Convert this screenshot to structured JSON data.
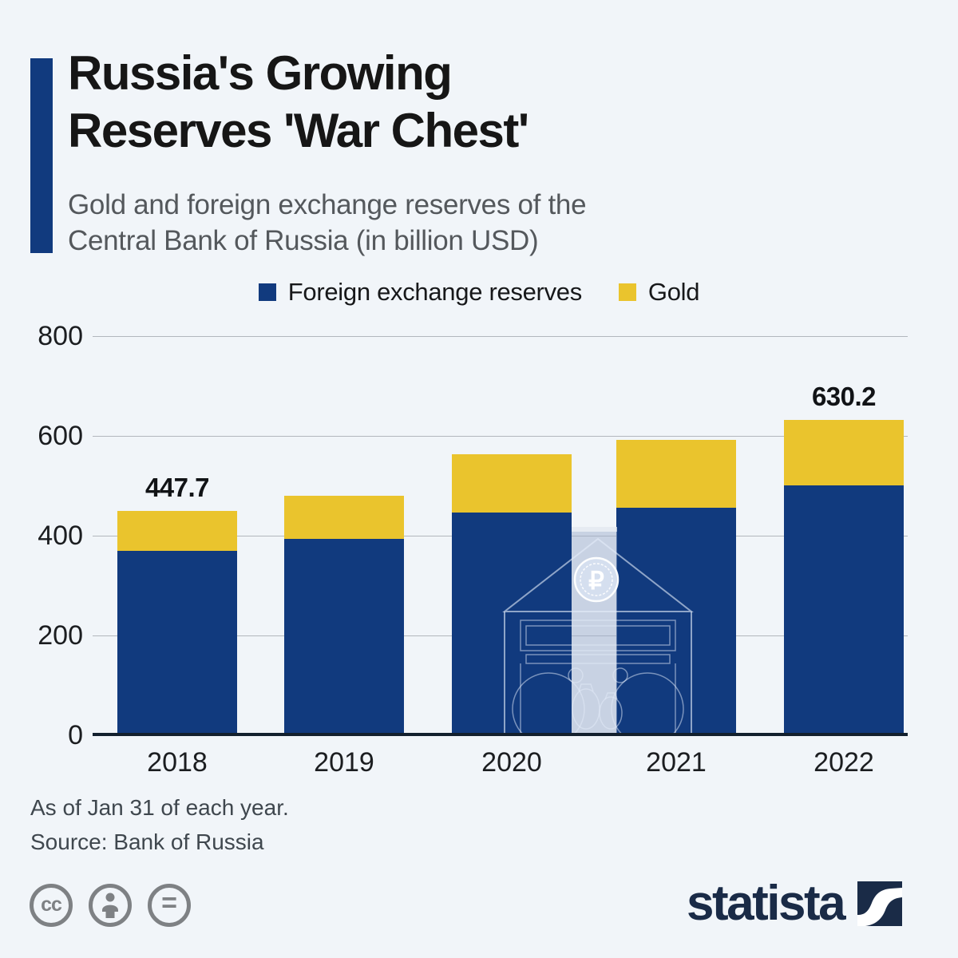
{
  "header": {
    "title_line1": "Russia's Growing",
    "title_line2": "Reserves 'War Chest'",
    "subtitle_line1": "Gold and foreign exchange reserves of the",
    "subtitle_line2": "Central Bank of Russia (in billion USD)"
  },
  "colors": {
    "accent_blue": "#113a7e",
    "gold": "#eac42d",
    "background": "#f1f5f9",
    "gridline": "#b2b7bd",
    "axis_line": "#13202e",
    "logo_navy": "#1a2b47",
    "icon_gray": "#7e8184"
  },
  "chart_data": {
    "type": "bar",
    "stacked": true,
    "title": "Gold and foreign exchange reserves of the Central Bank of Russia (in billion USD)",
    "categories": [
      "2018",
      "2019",
      "2020",
      "2021",
      "2022"
    ],
    "series": [
      {
        "name": "Foreign exchange reserves",
        "color": "#113a7e",
        "values": [
          368.0,
          390.8,
          445.3,
          453.8,
          497.9
        ]
      },
      {
        "name": "Gold",
        "color": "#eac42d",
        "values": [
          79.7,
          86.9,
          117.0,
          136.6,
          132.3
        ]
      }
    ],
    "totals": [
      447.7,
      477.7,
      562.3,
      590.4,
      630.2
    ],
    "value_labels": [
      {
        "index": 0,
        "text": "447.7"
      },
      {
        "index": 4,
        "text": "630.2"
      }
    ],
    "y_ticks": [
      0,
      200,
      400,
      600,
      800
    ],
    "ylim": [
      0,
      800
    ],
    "grid": true,
    "legend_position": "top"
  },
  "footer": {
    "note": "As of Jan 31 of each year.",
    "source": "Source: Bank of Russia"
  },
  "branding": {
    "logo_text": "statista",
    "cc_glyph": "cc",
    "equals_glyph": "="
  },
  "watermark": {
    "ruble_symbol": "₽"
  }
}
